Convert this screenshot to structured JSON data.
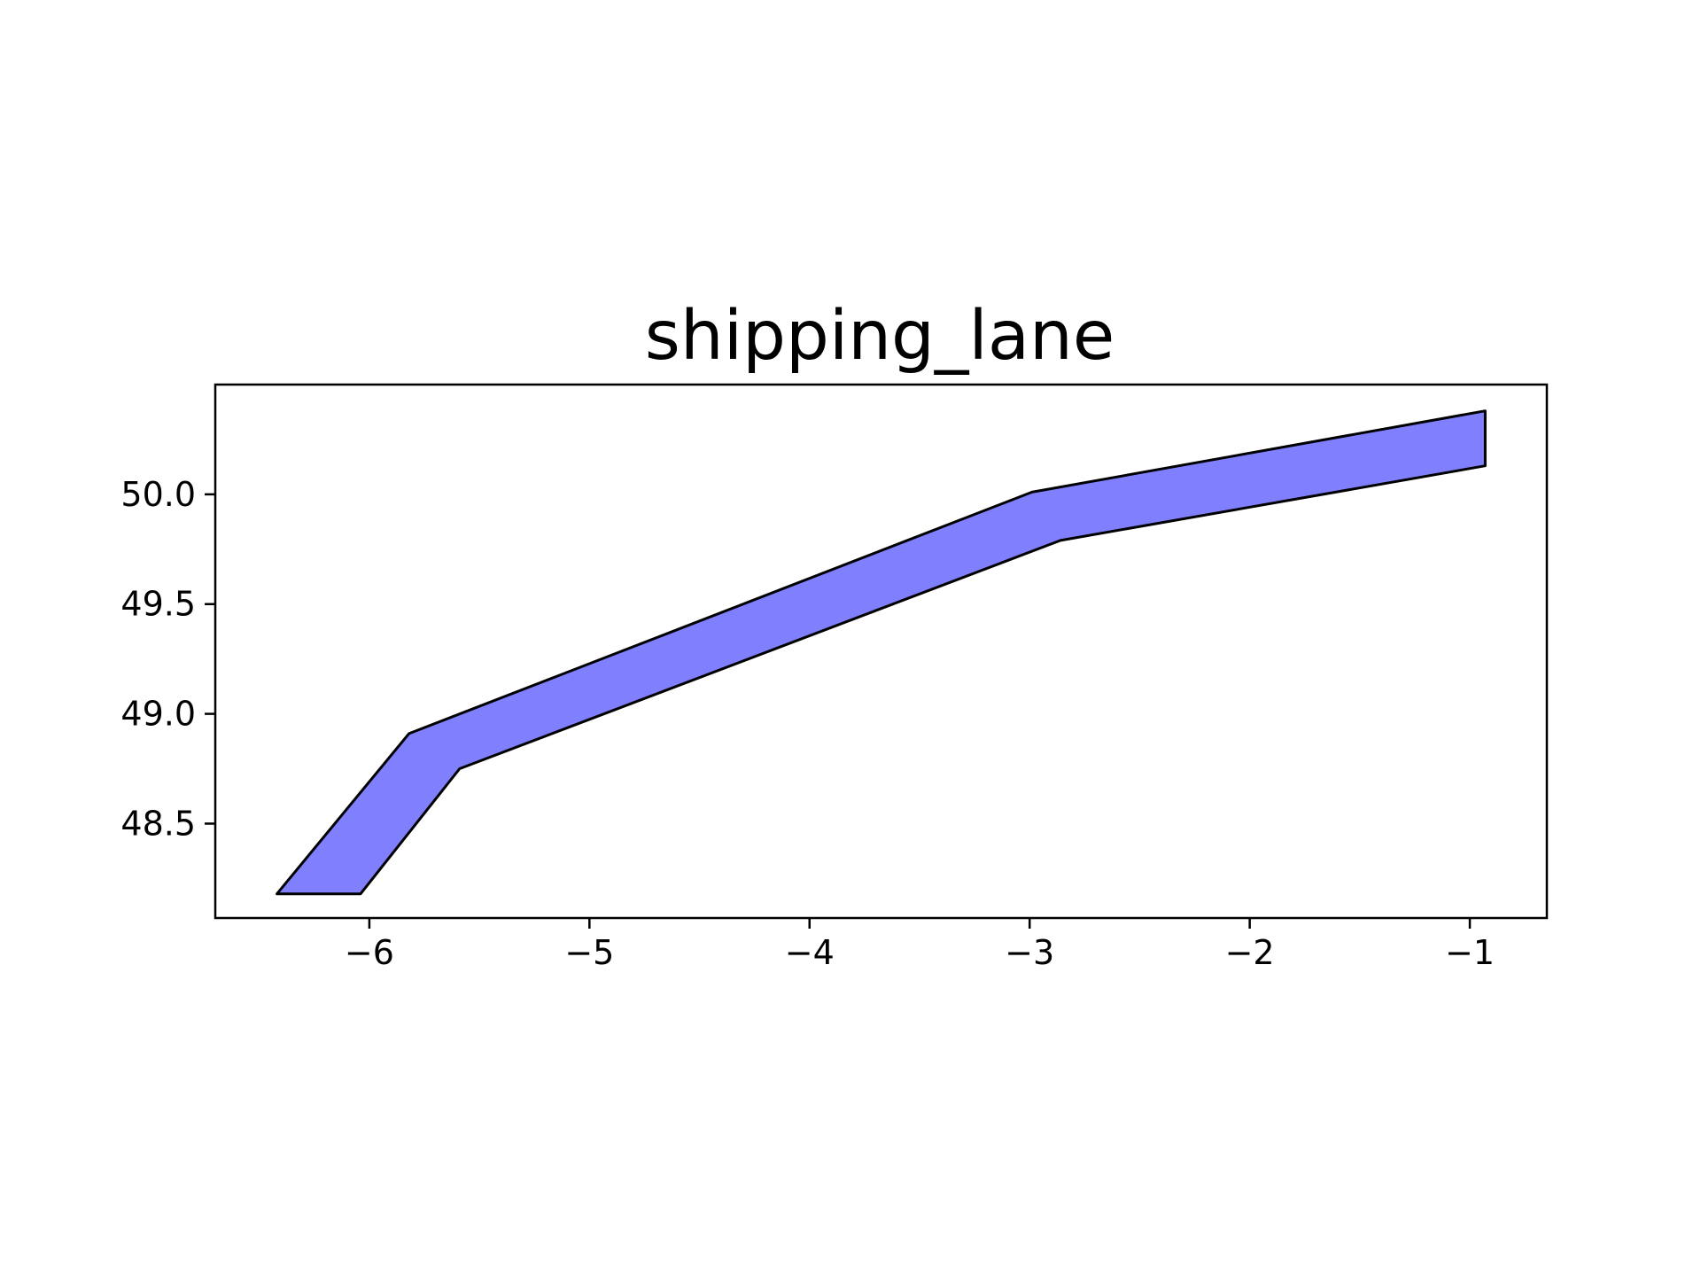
{
  "chart_data": {
    "type": "area",
    "title": "shipping_lane",
    "xlabel": "",
    "ylabel": "",
    "xlim": [
      -6.7,
      -0.65
    ],
    "ylim": [
      48.07,
      50.5
    ],
    "x_ticks": [
      {
        "value": -6,
        "label": "−6"
      },
      {
        "value": -5,
        "label": "−5"
      },
      {
        "value": -4,
        "label": "−4"
      },
      {
        "value": -3,
        "label": "−3"
      },
      {
        "value": -2,
        "label": "−2"
      },
      {
        "value": -1,
        "label": "−1"
      }
    ],
    "y_ticks": [
      {
        "value": 48.5,
        "label": "48.5"
      },
      {
        "value": 49.0,
        "label": "49.0"
      },
      {
        "value": 49.5,
        "label": "49.5"
      },
      {
        "value": 50.0,
        "label": "50.0"
      }
    ],
    "grid": false,
    "fill_color": "#8080ff",
    "edge_color": "#000000",
    "polygon": [
      {
        "x": -6.42,
        "y": 48.18
      },
      {
        "x": -5.82,
        "y": 48.91
      },
      {
        "x": -2.99,
        "y": 50.01
      },
      {
        "x": -0.93,
        "y": 50.38
      },
      {
        "x": -0.93,
        "y": 50.13
      },
      {
        "x": -2.86,
        "y": 49.79
      },
      {
        "x": -5.59,
        "y": 48.75
      },
      {
        "x": -6.04,
        "y": 48.18
      }
    ]
  }
}
